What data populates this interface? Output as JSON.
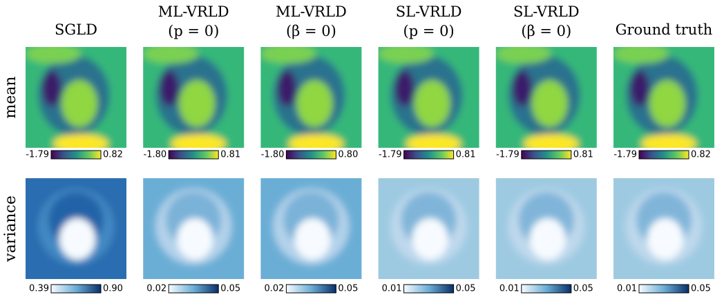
{
  "header": {
    "rows": [
      "mean",
      "variance"
    ]
  },
  "columns": [
    {
      "title": [
        "SGLD"
      ],
      "mean": {
        "min": "-1.79",
        "max": "0.82"
      },
      "variance": {
        "min": "0.39",
        "max": "0.90"
      }
    },
    {
      "title": [
        "ML-VRLD",
        "(p = 0)"
      ],
      "mean": {
        "min": "-1.80",
        "max": "0.81"
      },
      "variance": {
        "min": "0.02",
        "max": "0.05"
      }
    },
    {
      "title": [
        "ML-VRLD",
        "(β = 0)"
      ],
      "mean": {
        "min": "-1.80",
        "max": "0.80"
      },
      "variance": {
        "min": "0.02",
        "max": "0.05"
      }
    },
    {
      "title": [
        "SL-VRLD",
        "(p = 0)"
      ],
      "mean": {
        "min": "-1.79",
        "max": "0.81"
      },
      "variance": {
        "min": "0.01",
        "max": "0.05"
      }
    },
    {
      "title": [
        "SL-VRLD",
        "(β = 0)"
      ],
      "mean": {
        "min": "-1.79",
        "max": "0.81"
      },
      "variance": {
        "min": "0.01",
        "max": "0.05"
      }
    },
    {
      "title": [
        "Ground truth"
      ],
      "mean": {
        "min": "-1.79",
        "max": "0.82"
      },
      "variance": {
        "min": "0.01",
        "max": "0.05"
      }
    }
  ]
}
